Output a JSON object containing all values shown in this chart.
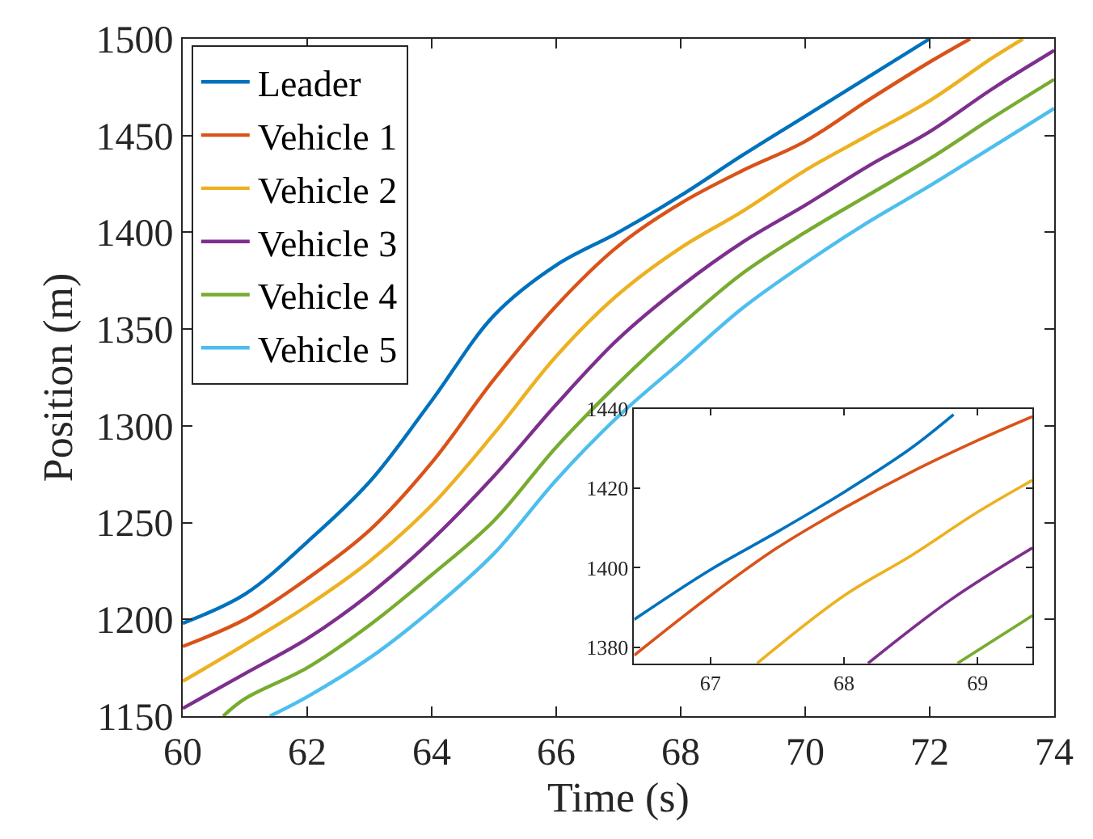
{
  "chart_data": [
    {
      "type": "line",
      "xlabel": "Time (s)",
      "ylabel": "Position (m)",
      "xlim": [
        60,
        74
      ],
      "ylim": [
        1150,
        1500
      ],
      "xticks": [
        60,
        62,
        64,
        66,
        68,
        70,
        72,
        74
      ],
      "yticks": [
        1150,
        1200,
        1250,
        1300,
        1350,
        1400,
        1450,
        1500
      ],
      "legend": "top left",
      "marker": "none",
      "line_style": "solid",
      "series": [
        {
          "name": "Leader",
          "color": "#0072bd",
          "x": [
            60,
            61,
            62,
            63,
            64,
            65,
            66,
            67,
            68,
            69,
            70,
            71,
            72
          ],
          "values": [
            1198,
            1213,
            1240,
            1271,
            1313,
            1357,
            1383,
            1400,
            1419,
            1440,
            1460,
            1480,
            1500
          ]
        },
        {
          "name": "Vehicle 1",
          "color": "#d95319",
          "x": [
            60,
            61,
            62,
            63,
            64,
            65,
            66,
            67,
            68,
            69,
            70,
            71,
            72,
            72.65
          ],
          "values": [
            1186,
            1200,
            1221,
            1246,
            1281,
            1324,
            1362,
            1393,
            1415,
            1432,
            1447,
            1468,
            1488,
            1500
          ]
        },
        {
          "name": "Vehicle 2",
          "color": "#edb120",
          "x": [
            60,
            61,
            62,
            63,
            64,
            65,
            66,
            67,
            68,
            69,
            70,
            71,
            72,
            73,
            73.5
          ],
          "values": [
            1168,
            1187,
            1207,
            1230,
            1259,
            1296,
            1336,
            1368,
            1392,
            1411,
            1432,
            1450,
            1468,
            1490,
            1500
          ]
        },
        {
          "name": "Vehicle 3",
          "color": "#7e2f8e",
          "x": [
            60,
            61,
            62,
            63,
            64,
            65,
            66,
            67,
            68,
            69,
            70,
            71,
            72,
            73,
            74
          ],
          "values": [
            1154,
            1172,
            1190,
            1213,
            1241,
            1274,
            1311,
            1345,
            1372,
            1395,
            1414,
            1434,
            1452,
            1474,
            1494
          ]
        },
        {
          "name": "Vehicle 4",
          "color": "#77ac30",
          "x": [
            60.65,
            61,
            62,
            63,
            64,
            65,
            66,
            67,
            68,
            69,
            70,
            71,
            72,
            73,
            74
          ],
          "values": [
            1150,
            1159,
            1175,
            1197,
            1223,
            1251,
            1289,
            1322,
            1352,
            1379,
            1400,
            1419,
            1438,
            1459,
            1479
          ]
        },
        {
          "name": "Vehicle 5",
          "color": "#4dbeee",
          "x": [
            61.4,
            62,
            63,
            64,
            65,
            66,
            67,
            68,
            69,
            70,
            71,
            72,
            73,
            74
          ],
          "values": [
            1150,
            1160,
            1180,
            1205,
            1234,
            1272,
            1305,
            1333,
            1361,
            1384,
            1405,
            1424,
            1444,
            1464
          ]
        }
      ]
    },
    {
      "type": "line",
      "xlim": [
        66.43,
        69.41
      ],
      "ylim": [
        1376,
        1440
      ],
      "xticks": [
        67,
        68,
        69
      ],
      "yticks": [
        1380,
        1400,
        1420,
        1440
      ],
      "legend": false,
      "marker": "none",
      "line_style": "solid",
      "series": [
        {
          "color": "#0072bd",
          "x": [
            66.43,
            67,
            67.5,
            68,
            68.5,
            68.82
          ],
          "values": [
            1387,
            1399.5,
            1409,
            1419,
            1430,
            1438.5
          ]
        },
        {
          "color": "#d95319",
          "x": [
            66.43,
            67,
            67.5,
            68,
            68.5,
            69,
            69.41
          ],
          "values": [
            1378,
            1393,
            1405,
            1415,
            1424,
            1432,
            1438
          ]
        },
        {
          "color": "#edb120",
          "x": [
            67.35,
            68,
            68.5,
            69,
            69.41
          ],
          "values": [
            1376,
            1393,
            1403,
            1414,
            1422
          ]
        },
        {
          "color": "#7e2f8e",
          "x": [
            68.18,
            68.8,
            69.41
          ],
          "values": [
            1376,
            1392,
            1405
          ]
        },
        {
          "color": "#77ac30",
          "x": [
            68.85,
            69.41
          ],
          "values": [
            1376,
            1388
          ]
        }
      ]
    }
  ]
}
